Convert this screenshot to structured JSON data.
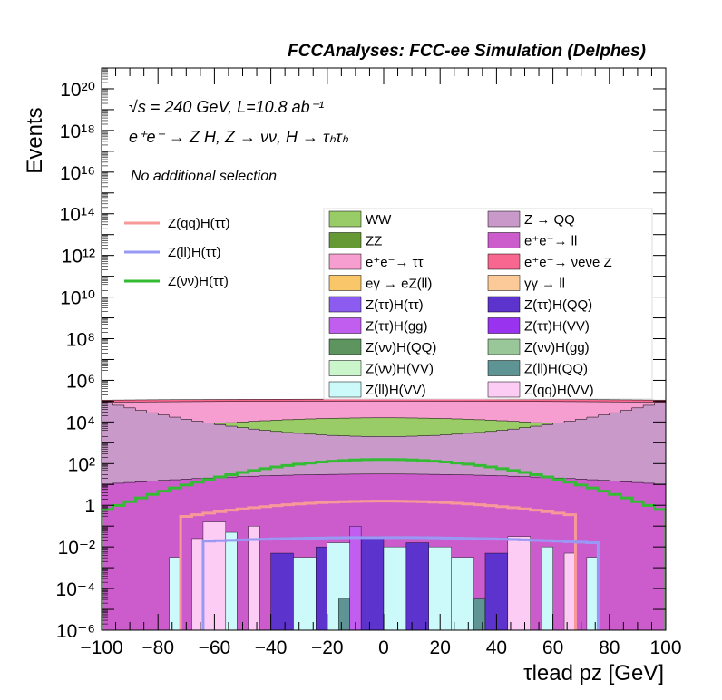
{
  "header": {
    "title": "FCCAnalyses: FCC-ee Simulation (Delphes)"
  },
  "annotations": {
    "energy_lumi": "√s = 240 GeV, L=10.8 ab⁻¹",
    "process": "e⁺e⁻ → Z H, Z → νν, H → τₕτₕ",
    "selection": "No additional selection"
  },
  "colors": {
    "WW": "#99cc66",
    "ZZ": "#669933",
    "ee_tautau": "#f59ecf",
    "egamma_eZll": "#f9c66a",
    "Ztautau_Htautau": "#8c5cf0",
    "Ztautau_Hgg": "#c15ef0",
    "Znunu_HQQ": "#5e9460",
    "Znunu_HVV": "#cbf5cb",
    "Zll_HVV": "#ccfafa",
    "Z_QQ": "#c999c9",
    "ee_ll": "#cc5ccc",
    "ee_nunuZ": "#f7678f",
    "gammagamma_ll": "#fcca99",
    "Ztautau_HQQ": "#5c33cc",
    "Ztautau_HVV": "#9933f0",
    "Znunu_Hgg": "#99c799",
    "Zll_HQQ": "#5e9494",
    "Zqq_HVV": "#fcccf5",
    "sig_Zqq": "#f79999",
    "sig_Zll": "#9999f5",
    "sig_Znunu": "#33bb33"
  },
  "chart_data": {
    "type": "histogram-stack-log",
    "xlabel": "τlead pz [GeV]",
    "ylabel": "Events",
    "xlim": [
      -100,
      100
    ],
    "ylim": [
      1e-06,
      1e+21
    ],
    "log_y": true,
    "x_ticks": [
      "−100",
      "−80",
      "−60",
      "−40",
      "−20",
      "0",
      "20",
      "40",
      "60",
      "80",
      "100"
    ],
    "y_ticks": [
      "10⁻⁶",
      "10⁻⁴",
      "10⁻²",
      "1",
      "10²",
      "10⁴",
      "10⁶",
      "10⁸",
      "10¹⁰",
      "10¹²",
      "10¹⁴",
      "10¹⁶",
      "10¹⁸",
      "10²⁰"
    ],
    "bin_width": 4,
    "stack_layers": [
      {
        "name": "e⁺e⁻ → ll",
        "key": "ee_ll",
        "edge": 1.0,
        "center": 1.5
      },
      {
        "name": "γγ → ll",
        "key": "gammagamma_ll",
        "edge": 0.6,
        "center": 1.0
      },
      {
        "name": "Z → QQ",
        "key": "Z_QQ",
        "edge": 5.0,
        "center": 3.3
      },
      {
        "name": "ZZ",
        "key": "ZZ",
        "edge": 2.7,
        "center": 1.9
      },
      {
        "name": "WW",
        "key": "WW",
        "edge": 3.4,
        "center": 4.2
      },
      {
        "name": "e⁺e⁻ → ττ",
        "key": "ee_tautau",
        "edge": 4.95,
        "center": 5.0
      },
      {
        "name": "e⁺e⁻ → νeνe Z",
        "key": "ee_nunuZ",
        "edge": 5.05,
        "center": 5.1
      }
    ],
    "legend_signals": [
      {
        "label": "Z(qq)H(ττ)",
        "key": "sig_Zqq"
      },
      {
        "label": "Z(ll)H(ττ)",
        "key": "sig_Zll"
      },
      {
        "label": "Z(νν)H(ττ)",
        "key": "sig_Znunu"
      }
    ],
    "legend_backgrounds": [
      {
        "label": "WW",
        "key": "WW"
      },
      {
        "label": "Z → QQ",
        "key": "Z_QQ"
      },
      {
        "label": "ZZ",
        "key": "ZZ"
      },
      {
        "label": "e⁺e⁻→ ll",
        "key": "ee_ll"
      },
      {
        "label": "e⁺e⁻→ ττ",
        "key": "ee_tautau"
      },
      {
        "label": "e⁺e⁻→ νeνe Z",
        "key": "ee_nunuZ"
      },
      {
        "label": "eγ → eZ(ll)",
        "key": "egamma_eZll"
      },
      {
        "label": "γγ → ll",
        "key": "gammagamma_ll"
      },
      {
        "label": "Z(ττ)H(ττ)",
        "key": "Ztautau_Htautau"
      },
      {
        "label": "Z(ττ)H(QQ)",
        "key": "Ztautau_HQQ"
      },
      {
        "label": "Z(ττ)H(gg)",
        "key": "Ztautau_Hgg"
      },
      {
        "label": "Z(ττ)H(VV)",
        "key": "Ztautau_HVV"
      },
      {
        "label": "Z(νν)H(QQ)",
        "key": "Znunu_HQQ"
      },
      {
        "label": "Z(νν)H(gg)",
        "key": "Znunu_Hgg"
      },
      {
        "label": "Z(νν)H(VV)",
        "key": "Znunu_HVV"
      },
      {
        "label": "Z(ll)H(QQ)",
        "key": "Zll_HQQ"
      },
      {
        "label": "Z(ll)H(VV)",
        "key": "Zll_HVV"
      },
      {
        "label": "Z(qq)H(VV)",
        "key": "Zqq_HVV"
      }
    ],
    "signals": [
      {
        "label": "Z(νν)H(ττ)",
        "key": "sig_Znunu",
        "range": [
          -100,
          100
        ],
        "edge": -0.3,
        "center": 2.2
      },
      {
        "label": "Z(qq)H(ττ)",
        "key": "sig_Zqq",
        "range": [
          -72,
          68
        ],
        "edge": -1.3,
        "center": 0.2
      },
      {
        "label": "Z(ll)H(ττ)",
        "key": "sig_Zll",
        "range": [
          -66,
          76
        ],
        "edge": -2.0,
        "center": -1.55
      }
    ],
    "egamma_floor": -1.3,
    "sparse_bars": [
      {
        "key": "Zll_HVV",
        "x": -76,
        "w": 4,
        "top": -2.5
      },
      {
        "key": "Zqq_HVV",
        "x": -68,
        "w": 4,
        "top": -1.6
      },
      {
        "key": "Zqq_HVV",
        "x": -64,
        "w": 8,
        "top": -0.8
      },
      {
        "key": "Zll_HVV",
        "x": -56,
        "w": 4,
        "top": -1.3
      },
      {
        "key": "Zqq_HVV",
        "x": -48,
        "w": 4,
        "top": -1.0
      },
      {
        "key": "Ztautau_HQQ",
        "x": -40,
        "w": 8,
        "top": -2.3
      },
      {
        "key": "Zll_HVV",
        "x": -32,
        "w": 8,
        "top": -2.5
      },
      {
        "key": "Ztautau_HQQ",
        "x": -24,
        "w": 4,
        "top": -2.0
      },
      {
        "key": "Zll_HVV",
        "x": -20,
        "w": 8,
        "top": -1.8
      },
      {
        "key": "Zll_HQQ",
        "x": -16,
        "w": 4,
        "top": -4.5
      },
      {
        "key": "Ztautau_Hgg",
        "x": -12,
        "w": 4,
        "top": -1.0
      },
      {
        "key": "Ztautau_HQQ",
        "x": -8,
        "w": 8,
        "top": -1.5
      },
      {
        "key": "Zll_HVV",
        "x": 0,
        "w": 8,
        "top": -2.0
      },
      {
        "key": "Ztautau_HQQ",
        "x": 8,
        "w": 8,
        "top": -1.8
      },
      {
        "key": "Zll_HVV",
        "x": 16,
        "w": 8,
        "top": -2.0
      },
      {
        "key": "Zll_HVV",
        "x": 24,
        "w": 8,
        "top": -2.5
      },
      {
        "key": "Zll_HQQ",
        "x": 32,
        "w": 4,
        "top": -4.5
      },
      {
        "key": "Ztautau_HQQ",
        "x": 36,
        "w": 8,
        "top": -2.3
      },
      {
        "key": "Zqq_HVV",
        "x": 44,
        "w": 8,
        "top": -1.5
      },
      {
        "key": "Zll_HVV",
        "x": 56,
        "w": 4,
        "top": -2.0
      },
      {
        "key": "Zqq_HVV",
        "x": 64,
        "w": 4,
        "top": -2.3
      },
      {
        "key": "Zll_HVV",
        "x": 72,
        "w": 4,
        "top": -2.5
      }
    ]
  }
}
